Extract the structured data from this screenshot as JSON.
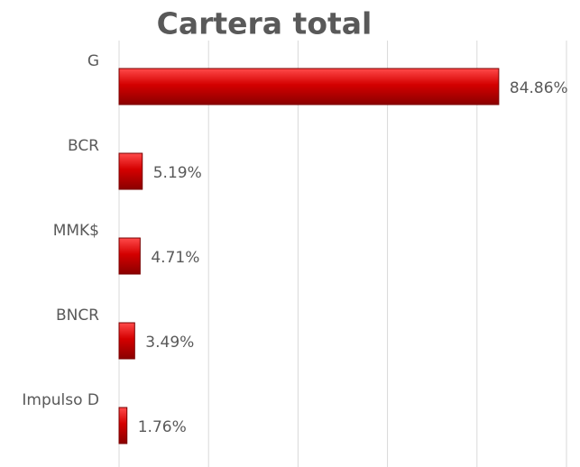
{
  "chart_data": {
    "type": "hbar",
    "title": "Cartera total",
    "categories": [
      "G",
      "BCR",
      "MMK$",
      "BNCR",
      "Impulso D"
    ],
    "values": [
      84.86,
      5.19,
      4.71,
      3.49,
      1.76
    ],
    "value_labels": [
      "84.86%",
      "5.19%",
      "4.71%",
      "3.49%",
      "1.76%"
    ],
    "color": "#c00000",
    "xlim": [
      0,
      100
    ],
    "xticks": [
      0,
      20,
      40,
      60,
      80,
      100
    ],
    "grid": true
  }
}
